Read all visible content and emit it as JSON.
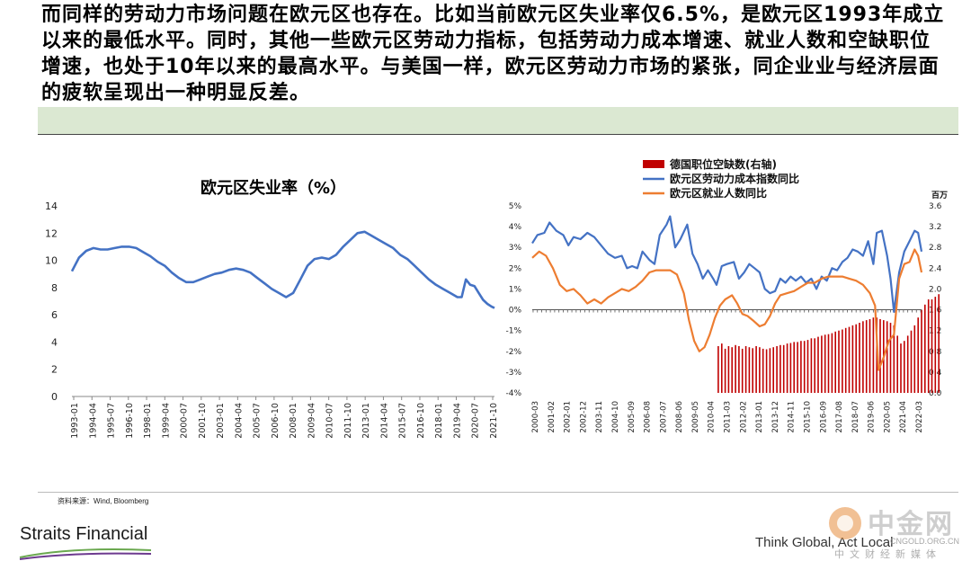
{
  "headline": "而同样的劳动力市场问题在欧元区也存在。比如当前欧元区失业率仅6.5%，是欧元区1993年成立以来的最低水平。同时，其他一些欧元区劳动力指标，包括劳动力成本增速、就业人数和空缺职位增速，也处于10年以来的最高水平。与美国一样，欧元区劳动力市场的紧张，同企业业与经济层面的疲软呈现出一种明显反差。",
  "footer": {
    "source": "资料来源：Wind, Bloomberg",
    "brand": "Straits Financial",
    "slogan": "Think Global, Act Local",
    "watermark_name": "中金网",
    "watermark_url": "CNGOLD.ORG.CN",
    "watermark_sub": "中文财经新媒体"
  },
  "colors": {
    "blue": "#4472c4",
    "orange": "#ed7d31",
    "red": "#c00000",
    "band": "#dbe8d2"
  },
  "chart_data": [
    {
      "type": "line",
      "title": "欧元区失业率（%）",
      "xlabel": "",
      "ylabel": "",
      "ylim": [
        0,
        14
      ],
      "yticks": [
        "0",
        "2",
        "4",
        "6",
        "8",
        "10",
        "12",
        "14"
      ],
      "x_tick_labels": [
        "1993-01",
        "1994-04",
        "1995-07",
        "1996-10",
        "1998-01",
        "1999-04",
        "2000-07",
        "2001-10",
        "2003-01",
        "2004-04",
        "2005-07",
        "2006-10",
        "2008-01",
        "2009-04",
        "2010-07",
        "2011-10",
        "2013-01",
        "2014-04",
        "2015-07",
        "2016-10",
        "2018-01",
        "2019-04",
        "2020-07",
        "2021-10"
      ],
      "x_range": [
        1993.0,
        2022.6
      ],
      "grid": false,
      "series": [
        {
          "color": "#4472c4",
          "points": [
            [
              1993.0,
              9.2
            ],
            [
              1993.5,
              10.2
            ],
            [
              1994.0,
              10.7
            ],
            [
              1994.5,
              10.9
            ],
            [
              1995.0,
              10.8
            ],
            [
              1995.5,
              10.8
            ],
            [
              1996.0,
              10.9
            ],
            [
              1996.5,
              11.0
            ],
            [
              1997.0,
              11.0
            ],
            [
              1997.5,
              10.9
            ],
            [
              1998.0,
              10.6
            ],
            [
              1998.5,
              10.3
            ],
            [
              1999.0,
              9.9
            ],
            [
              1999.5,
              9.6
            ],
            [
              2000.0,
              9.1
            ],
            [
              2000.5,
              8.7
            ],
            [
              2001.0,
              8.4
            ],
            [
              2001.5,
              8.4
            ],
            [
              2002.0,
              8.6
            ],
            [
              2002.5,
              8.8
            ],
            [
              2003.0,
              9.0
            ],
            [
              2003.5,
              9.1
            ],
            [
              2004.0,
              9.3
            ],
            [
              2004.5,
              9.4
            ],
            [
              2005.0,
              9.3
            ],
            [
              2005.5,
              9.1
            ],
            [
              2006.0,
              8.7
            ],
            [
              2006.5,
              8.3
            ],
            [
              2007.0,
              7.9
            ],
            [
              2007.5,
              7.6
            ],
            [
              2008.0,
              7.3
            ],
            [
              2008.5,
              7.6
            ],
            [
              2009.0,
              8.6
            ],
            [
              2009.5,
              9.6
            ],
            [
              2010.0,
              10.1
            ],
            [
              2010.5,
              10.2
            ],
            [
              2011.0,
              10.1
            ],
            [
              2011.5,
              10.4
            ],
            [
              2012.0,
              11.0
            ],
            [
              2012.5,
              11.5
            ],
            [
              2013.0,
              12.0
            ],
            [
              2013.5,
              12.1
            ],
            [
              2014.0,
              11.8
            ],
            [
              2014.5,
              11.5
            ],
            [
              2015.0,
              11.2
            ],
            [
              2015.5,
              10.9
            ],
            [
              2016.0,
              10.4
            ],
            [
              2016.5,
              10.1
            ],
            [
              2017.0,
              9.6
            ],
            [
              2017.5,
              9.1
            ],
            [
              2018.0,
              8.6
            ],
            [
              2018.5,
              8.2
            ],
            [
              2019.0,
              7.9
            ],
            [
              2019.5,
              7.6
            ],
            [
              2020.0,
              7.3
            ],
            [
              2020.3,
              7.3
            ],
            [
              2020.6,
              8.6
            ],
            [
              2020.9,
              8.2
            ],
            [
              2021.2,
              8.1
            ],
            [
              2021.5,
              7.6
            ],
            [
              2021.8,
              7.1
            ],
            [
              2022.1,
              6.8
            ],
            [
              2022.4,
              6.6
            ],
            [
              2022.6,
              6.5
            ]
          ]
        }
      ]
    },
    {
      "type": "line+bar",
      "title": "",
      "legend": [
        "德国职位空缺数(右轴)",
        "欧元区劳动力成本指数同比",
        "欧元区就业人数同比"
      ],
      "legend_position": "top",
      "right_axis_unit": "百万",
      "left_ylim": [
        -4,
        5
      ],
      "left_yticks": [
        "-4%",
        "-3%",
        "-2%",
        "-1%",
        "0%",
        "1%",
        "2%",
        "3%",
        "4%",
        "5%"
      ],
      "right_ylim": [
        0.0,
        3.6
      ],
      "right_yticks": [
        "0.0",
        "0.4",
        "0.8",
        "1.2",
        "1.6",
        "2.0",
        "2.4",
        "2.8",
        "3.2",
        "3.6"
      ],
      "x_tick_labels": [
        "2000-03",
        "2001-02",
        "2002-01",
        "2002-12",
        "2003-11",
        "2004-10",
        "2005-09",
        "2006-08",
        "2007-07",
        "2008-06",
        "2009-05",
        "2010-04",
        "2011-03",
        "2012-02",
        "2013-01",
        "2013-12",
        "2014-11",
        "2015-10",
        "2016-09",
        "2017-08",
        "2018-07",
        "2019-06",
        "2020-05",
        "2021-04",
        "2022-03"
      ],
      "x_range": [
        2000.2,
        2022.8
      ],
      "series": [
        {
          "name": "欧元区劳动力成本指数同比",
          "axis": "left",
          "color": "#4472c4",
          "points": [
            [
              2000.2,
              3.2
            ],
            [
              2000.5,
              3.6
            ],
            [
              2000.9,
              3.7
            ],
            [
              2001.2,
              4.2
            ],
            [
              2001.6,
              3.8
            ],
            [
              2002.0,
              3.6
            ],
            [
              2002.3,
              3.1
            ],
            [
              2002.6,
              3.5
            ],
            [
              2003.0,
              3.4
            ],
            [
              2003.4,
              3.7
            ],
            [
              2003.8,
              3.5
            ],
            [
              2004.2,
              3.1
            ],
            [
              2004.6,
              2.7
            ],
            [
              2005.0,
              2.5
            ],
            [
              2005.4,
              2.6
            ],
            [
              2005.7,
              2.0
            ],
            [
              2006.0,
              2.1
            ],
            [
              2006.3,
              2.0
            ],
            [
              2006.6,
              2.8
            ],
            [
              2007.0,
              2.4
            ],
            [
              2007.3,
              2.2
            ],
            [
              2007.6,
              3.6
            ],
            [
              2008.0,
              4.1
            ],
            [
              2008.2,
              4.5
            ],
            [
              2008.5,
              3.0
            ],
            [
              2008.8,
              3.4
            ],
            [
              2009.2,
              4.1
            ],
            [
              2009.5,
              2.7
            ],
            [
              2009.8,
              2.2
            ],
            [
              2010.1,
              1.5
            ],
            [
              2010.4,
              1.9
            ],
            [
              2010.7,
              1.5
            ],
            [
              2010.9,
              1.2
            ],
            [
              2011.2,
              2.1
            ],
            [
              2011.5,
              2.2
            ],
            [
              2011.9,
              2.3
            ],
            [
              2012.2,
              1.5
            ],
            [
              2012.5,
              1.8
            ],
            [
              2012.8,
              2.2
            ],
            [
              2013.1,
              2.0
            ],
            [
              2013.4,
              1.8
            ],
            [
              2013.7,
              1.0
            ],
            [
              2014.0,
              0.8
            ],
            [
              2014.3,
              0.9
            ],
            [
              2014.6,
              1.5
            ],
            [
              2014.9,
              1.3
            ],
            [
              2015.2,
              1.6
            ],
            [
              2015.5,
              1.4
            ],
            [
              2015.8,
              1.6
            ],
            [
              2016.1,
              1.3
            ],
            [
              2016.4,
              1.5
            ],
            [
              2016.7,
              1.0
            ],
            [
              2017.0,
              1.6
            ],
            [
              2017.3,
              1.4
            ],
            [
              2017.6,
              2.0
            ],
            [
              2017.9,
              1.9
            ],
            [
              2018.2,
              2.3
            ],
            [
              2018.5,
              2.5
            ],
            [
              2018.8,
              2.9
            ],
            [
              2019.1,
              2.8
            ],
            [
              2019.4,
              2.6
            ],
            [
              2019.7,
              3.3
            ],
            [
              2020.0,
              2.2
            ],
            [
              2020.2,
              3.7
            ],
            [
              2020.5,
              3.8
            ],
            [
              2020.8,
              2.6
            ],
            [
              2021.0,
              1.5
            ],
            [
              2021.2,
              -0.1
            ],
            [
              2021.5,
              1.8
            ],
            [
              2021.8,
              2.8
            ],
            [
              2022.1,
              3.3
            ],
            [
              2022.4,
              3.8
            ],
            [
              2022.6,
              3.7
            ],
            [
              2022.8,
              2.8
            ]
          ]
        },
        {
          "name": "欧元区就业人数同比",
          "axis": "left",
          "color": "#ed7d31",
          "points": [
            [
              2000.2,
              2.5
            ],
            [
              2000.6,
              2.8
            ],
            [
              2001.0,
              2.6
            ],
            [
              2001.4,
              2.0
            ],
            [
              2001.8,
              1.2
            ],
            [
              2002.2,
              0.9
            ],
            [
              2002.6,
              1.0
            ],
            [
              2003.0,
              0.7
            ],
            [
              2003.4,
              0.3
            ],
            [
              2003.8,
              0.5
            ],
            [
              2004.2,
              0.3
            ],
            [
              2004.6,
              0.6
            ],
            [
              2005.0,
              0.8
            ],
            [
              2005.4,
              1.0
            ],
            [
              2005.8,
              0.9
            ],
            [
              2006.2,
              1.1
            ],
            [
              2006.6,
              1.4
            ],
            [
              2007.0,
              1.8
            ],
            [
              2007.4,
              1.9
            ],
            [
              2007.8,
              1.9
            ],
            [
              2008.2,
              1.9
            ],
            [
              2008.6,
              1.7
            ],
            [
              2009.0,
              0.8
            ],
            [
              2009.3,
              -0.5
            ],
            [
              2009.6,
              -1.5
            ],
            [
              2009.9,
              -2.0
            ],
            [
              2010.2,
              -1.8
            ],
            [
              2010.5,
              -1.2
            ],
            [
              2010.8,
              -0.4
            ],
            [
              2011.1,
              0.2
            ],
            [
              2011.4,
              0.5
            ],
            [
              2011.8,
              0.7
            ],
            [
              2012.1,
              0.3
            ],
            [
              2012.4,
              -0.2
            ],
            [
              2012.7,
              -0.3
            ],
            [
              2013.0,
              -0.5
            ],
            [
              2013.4,
              -0.8
            ],
            [
              2013.7,
              -0.7
            ],
            [
              2014.0,
              -0.3
            ],
            [
              2014.3,
              0.3
            ],
            [
              2014.6,
              0.7
            ],
            [
              2015.0,
              0.8
            ],
            [
              2015.4,
              0.9
            ],
            [
              2015.8,
              1.1
            ],
            [
              2016.2,
              1.3
            ],
            [
              2016.6,
              1.3
            ],
            [
              2017.0,
              1.5
            ],
            [
              2017.4,
              1.6
            ],
            [
              2017.8,
              1.6
            ],
            [
              2018.2,
              1.6
            ],
            [
              2018.6,
              1.5
            ],
            [
              2019.0,
              1.4
            ],
            [
              2019.4,
              1.2
            ],
            [
              2019.8,
              0.8
            ],
            [
              2020.1,
              0.2
            ],
            [
              2020.3,
              -2.9
            ],
            [
              2020.6,
              -2.3
            ],
            [
              2020.9,
              -1.5
            ],
            [
              2021.2,
              -1.2
            ],
            [
              2021.5,
              1.5
            ],
            [
              2021.8,
              2.2
            ],
            [
              2022.1,
              2.3
            ],
            [
              2022.4,
              2.9
            ],
            [
              2022.6,
              2.6
            ],
            [
              2022.8,
              1.8
            ]
          ]
        },
        {
          "name": "德国职位空缺数(右轴)",
          "axis": "right",
          "type": "bar",
          "color": "#c00000",
          "x_start": 2011.0,
          "x_step": 0.2,
          "values": [
            0.9,
            0.95,
            0.85,
            0.9,
            0.88,
            0.92,
            0.9,
            0.85,
            0.9,
            0.88,
            0.86,
            0.9,
            0.88,
            0.85,
            0.84,
            0.86,
            0.88,
            0.9,
            0.92,
            0.92,
            0.95,
            0.96,
            0.98,
            0.98,
            1.0,
            1.0,
            1.02,
            1.05,
            1.05,
            1.08,
            1.1,
            1.12,
            1.13,
            1.15,
            1.18,
            1.2,
            1.22,
            1.25,
            1.27,
            1.3,
            1.32,
            1.35,
            1.38,
            1.4,
            1.42,
            1.45,
            1.45,
            1.42,
            1.4,
            1.38,
            1.35,
            1.3,
            1.1,
            0.95,
            1.0,
            1.1,
            1.2,
            1.3,
            1.45,
            1.6,
            1.7,
            1.8,
            1.8,
            1.85,
            1.9
          ]
        }
      ]
    }
  ]
}
